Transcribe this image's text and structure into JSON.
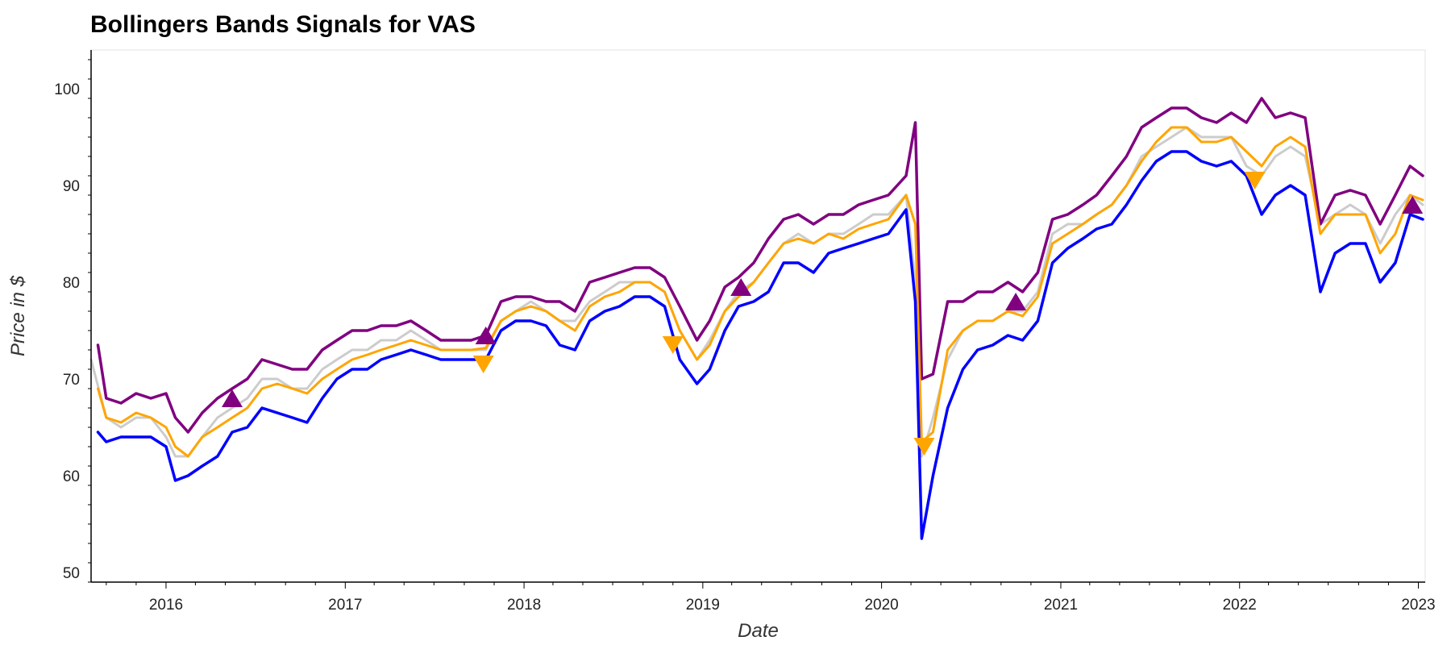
{
  "chart_data": {
    "type": "line",
    "title": "Bollingers Bands Signals for VAS",
    "xlabel": "Date",
    "ylabel": "Price in $",
    "xlim": [
      "2015-08-01",
      "2023-01-15"
    ],
    "ylim": [
      49,
      104
    ],
    "y_ticks": [
      50,
      60,
      70,
      80,
      90,
      100
    ],
    "x_ticks": [
      "2016",
      "2017",
      "2018",
      "2019",
      "2020",
      "2021",
      "2022",
      "2023"
    ],
    "grid": false,
    "colors": {
      "close": "#cccccc",
      "upper": "#800080",
      "middle": "#ffa500",
      "lower": "#0000ff",
      "buy": "#800080",
      "sell": "#ffa500"
    },
    "series": [
      {
        "key": "close",
        "x": [
          "2015-08-01",
          "2015-09-01",
          "2015-10-01",
          "2015-11-01",
          "2015-12-01",
          "2016-01-01",
          "2016-01-20",
          "2016-02-15",
          "2016-03-15",
          "2016-04-15",
          "2016-05-15",
          "2016-06-15",
          "2016-07-15",
          "2016-08-15",
          "2016-09-15",
          "2016-10-15",
          "2016-11-15",
          "2016-12-15",
          "2017-01-15",
          "2017-02-15",
          "2017-03-15",
          "2017-04-15",
          "2017-05-15",
          "2017-06-15",
          "2017-07-15",
          "2017-08-15",
          "2017-09-15",
          "2017-10-15",
          "2017-11-15",
          "2017-12-15",
          "2018-01-15",
          "2018-02-15",
          "2018-03-15",
          "2018-04-15",
          "2018-05-15",
          "2018-06-15",
          "2018-07-15",
          "2018-08-15",
          "2018-09-15",
          "2018-10-15",
          "2018-11-15",
          "2018-12-20",
          "2019-01-15",
          "2019-02-15",
          "2019-03-15",
          "2019-04-15",
          "2019-05-15",
          "2019-06-15",
          "2019-07-15",
          "2019-08-15",
          "2019-09-15",
          "2019-10-15",
          "2019-11-15",
          "2019-12-15",
          "2020-01-15",
          "2020-02-20",
          "2020-03-10",
          "2020-03-23",
          "2020-04-15",
          "2020-05-15",
          "2020-06-15",
          "2020-07-15",
          "2020-08-15",
          "2020-09-15",
          "2020-10-15",
          "2020-11-15",
          "2020-12-15",
          "2021-01-15",
          "2021-02-15",
          "2021-03-15",
          "2021-04-15",
          "2021-05-15",
          "2021-06-15",
          "2021-07-15",
          "2021-08-15",
          "2021-09-15",
          "2021-10-15",
          "2021-11-15",
          "2021-12-15",
          "2022-01-15",
          "2022-02-15",
          "2022-03-15",
          "2022-04-15",
          "2022-05-15",
          "2022-06-15",
          "2022-07-15",
          "2022-08-15",
          "2022-09-15",
          "2022-10-15",
          "2022-11-15",
          "2022-12-15",
          "2023-01-10"
        ],
        "values": [
          72,
          66,
          65,
          66,
          66,
          64,
          62,
          62,
          64,
          66,
          67,
          68,
          70,
          70,
          69,
          69,
          71,
          72,
          73,
          73,
          74,
          74,
          75,
          74,
          73,
          73,
          73,
          73,
          76,
          77,
          78,
          77,
          76,
          76,
          78,
          79,
          80,
          80,
          80,
          79,
          75,
          72,
          74,
          77,
          79,
          80,
          82,
          84,
          85,
          84,
          85,
          85,
          86,
          87,
          87,
          89,
          80,
          62,
          66,
          72,
          75,
          76,
          76,
          77,
          77,
          79,
          85,
          86,
          86,
          87,
          88,
          90,
          93,
          94,
          95,
          96,
          95,
          95,
          95,
          92,
          91,
          93,
          94,
          93,
          86,
          87,
          88,
          87,
          84,
          87,
          89,
          88
        ]
      },
      {
        "key": "upper",
        "x": [
          "2015-08-15",
          "2015-09-01",
          "2015-10-01",
          "2015-11-01",
          "2015-12-01",
          "2016-01-01",
          "2016-01-20",
          "2016-02-15",
          "2016-03-15",
          "2016-04-15",
          "2016-05-15",
          "2016-06-15",
          "2016-07-15",
          "2016-08-15",
          "2016-09-15",
          "2016-10-15",
          "2016-11-15",
          "2016-12-15",
          "2017-01-15",
          "2017-02-15",
          "2017-03-15",
          "2017-04-15",
          "2017-05-15",
          "2017-06-15",
          "2017-07-15",
          "2017-08-15",
          "2017-09-15",
          "2017-10-15",
          "2017-11-15",
          "2017-12-15",
          "2018-01-15",
          "2018-02-15",
          "2018-03-15",
          "2018-04-15",
          "2018-05-15",
          "2018-06-15",
          "2018-07-15",
          "2018-08-15",
          "2018-09-15",
          "2018-10-15",
          "2018-11-15",
          "2018-12-20",
          "2019-01-15",
          "2019-02-15",
          "2019-03-15",
          "2019-04-15",
          "2019-05-15",
          "2019-06-15",
          "2019-07-15",
          "2019-08-15",
          "2019-09-15",
          "2019-10-15",
          "2019-11-15",
          "2019-12-15",
          "2020-01-15",
          "2020-02-20",
          "2020-03-10",
          "2020-03-23",
          "2020-04-15",
          "2020-05-15",
          "2020-06-15",
          "2020-07-15",
          "2020-08-15",
          "2020-09-15",
          "2020-10-15",
          "2020-11-15",
          "2020-12-15",
          "2021-01-15",
          "2021-02-15",
          "2021-03-15",
          "2021-04-15",
          "2021-05-15",
          "2021-06-15",
          "2021-07-15",
          "2021-08-15",
          "2021-09-15",
          "2021-10-15",
          "2021-11-15",
          "2021-12-15",
          "2022-01-15",
          "2022-02-15",
          "2022-03-15",
          "2022-04-15",
          "2022-05-15",
          "2022-06-15",
          "2022-07-15",
          "2022-08-15",
          "2022-09-15",
          "2022-10-15",
          "2022-11-15",
          "2022-12-15",
          "2023-01-10"
        ],
        "values": [
          73.5,
          68,
          67.5,
          68.5,
          68,
          68.5,
          66,
          64.5,
          66.5,
          68,
          69,
          70,
          72,
          71.5,
          71,
          71,
          73,
          74,
          75,
          75,
          75.5,
          75.5,
          76,
          75,
          74,
          74,
          74,
          74.5,
          78,
          78.5,
          78.5,
          78,
          78,
          77,
          80,
          80.5,
          81,
          81.5,
          81.5,
          80.5,
          77.5,
          74,
          76,
          79.5,
          80.5,
          82,
          84.5,
          86.5,
          87,
          86,
          87,
          87,
          88,
          88.5,
          89,
          91,
          96.5,
          70,
          70.5,
          78,
          78,
          79,
          79,
          80,
          79,
          81,
          86.5,
          87,
          88,
          89,
          91,
          93,
          96,
          97,
          98,
          98,
          97,
          96.5,
          97.5,
          96.5,
          99,
          97,
          97.5,
          97,
          86,
          89,
          89.5,
          89,
          86,
          89,
          92,
          91
        ]
      },
      {
        "key": "middle",
        "x": [
          "2015-08-15",
          "2015-09-01",
          "2015-10-01",
          "2015-11-01",
          "2015-12-01",
          "2016-01-01",
          "2016-01-20",
          "2016-02-15",
          "2016-03-15",
          "2016-04-15",
          "2016-05-15",
          "2016-06-15",
          "2016-07-15",
          "2016-08-15",
          "2016-09-15",
          "2016-10-15",
          "2016-11-15",
          "2016-12-15",
          "2017-01-15",
          "2017-02-15",
          "2017-03-15",
          "2017-04-15",
          "2017-05-15",
          "2017-06-15",
          "2017-07-15",
          "2017-08-15",
          "2017-09-15",
          "2017-10-15",
          "2017-11-15",
          "2017-12-15",
          "2018-01-15",
          "2018-02-15",
          "2018-03-15",
          "2018-04-15",
          "2018-05-15",
          "2018-06-15",
          "2018-07-15",
          "2018-08-15",
          "2018-09-15",
          "2018-10-15",
          "2018-11-15",
          "2018-12-20",
          "2019-01-15",
          "2019-02-15",
          "2019-03-15",
          "2019-04-15",
          "2019-05-15",
          "2019-06-15",
          "2019-07-15",
          "2019-08-15",
          "2019-09-15",
          "2019-10-15",
          "2019-11-15",
          "2019-12-15",
          "2020-01-15",
          "2020-02-20",
          "2020-03-10",
          "2020-03-23",
          "2020-04-15",
          "2020-05-15",
          "2020-06-15",
          "2020-07-15",
          "2020-08-15",
          "2020-09-15",
          "2020-10-15",
          "2020-11-15",
          "2020-12-15",
          "2021-01-15",
          "2021-02-15",
          "2021-03-15",
          "2021-04-15",
          "2021-05-15",
          "2021-06-15",
          "2021-07-15",
          "2021-08-15",
          "2021-09-15",
          "2021-10-15",
          "2021-11-15",
          "2021-12-15",
          "2022-01-15",
          "2022-02-15",
          "2022-03-15",
          "2022-04-15",
          "2022-05-15",
          "2022-06-15",
          "2022-07-15",
          "2022-08-15",
          "2022-09-15",
          "2022-10-15",
          "2022-11-15",
          "2022-12-15",
          "2023-01-10"
        ],
        "values": [
          69,
          66,
          65.5,
          66.5,
          66,
          65,
          63,
          62,
          64,
          65,
          66,
          67,
          69,
          69.5,
          69,
          68.5,
          70,
          71,
          72,
          72.5,
          73,
          73.5,
          74,
          73.5,
          73,
          73,
          73,
          73.2,
          76,
          77,
          77.5,
          77,
          76,
          75,
          77.5,
          78.5,
          79,
          80,
          80,
          79,
          75,
          72,
          73.5,
          77,
          78.5,
          80,
          82,
          84,
          84.5,
          84,
          85,
          84.5,
          85.5,
          86,
          86.5,
          89,
          86,
          63.5,
          64.5,
          73,
          75,
          76,
          76,
          77,
          76.5,
          78.5,
          84,
          85,
          86,
          87,
          88,
          90,
          92.5,
          94.5,
          96,
          96,
          94.5,
          94.5,
          95,
          93.5,
          92,
          94,
          95,
          94,
          85,
          87,
          87,
          87,
          83,
          85,
          89,
          88.5
        ]
      },
      {
        "key": "lower",
        "x": [
          "2015-08-15",
          "2015-09-01",
          "2015-10-01",
          "2015-11-01",
          "2015-12-01",
          "2016-01-01",
          "2016-01-20",
          "2016-02-15",
          "2016-03-15",
          "2016-04-15",
          "2016-05-15",
          "2016-06-15",
          "2016-07-15",
          "2016-08-15",
          "2016-09-15",
          "2016-10-15",
          "2016-11-15",
          "2016-12-15",
          "2017-01-15",
          "2017-02-15",
          "2017-03-15",
          "2017-04-15",
          "2017-05-15",
          "2017-06-15",
          "2017-07-15",
          "2017-08-15",
          "2017-09-15",
          "2017-10-15",
          "2017-11-15",
          "2017-12-15",
          "2018-01-15",
          "2018-02-15",
          "2018-03-15",
          "2018-04-15",
          "2018-05-15",
          "2018-06-15",
          "2018-07-15",
          "2018-08-15",
          "2018-09-15",
          "2018-10-15",
          "2018-11-15",
          "2018-12-20",
          "2019-01-15",
          "2019-02-15",
          "2019-03-15",
          "2019-04-15",
          "2019-05-15",
          "2019-06-15",
          "2019-07-15",
          "2019-08-15",
          "2019-09-15",
          "2019-10-15",
          "2019-11-15",
          "2019-12-15",
          "2020-01-15",
          "2020-02-20",
          "2020-03-10",
          "2020-03-23",
          "2020-04-15",
          "2020-05-15",
          "2020-06-15",
          "2020-07-15",
          "2020-08-15",
          "2020-09-15",
          "2020-10-15",
          "2020-11-15",
          "2020-12-15",
          "2021-01-15",
          "2021-02-15",
          "2021-03-15",
          "2021-04-15",
          "2021-05-15",
          "2021-06-15",
          "2021-07-15",
          "2021-08-15",
          "2021-09-15",
          "2021-10-15",
          "2021-11-15",
          "2021-12-15",
          "2022-01-15",
          "2022-02-15",
          "2022-03-15",
          "2022-04-15",
          "2022-05-15",
          "2022-06-15",
          "2022-07-15",
          "2022-08-15",
          "2022-09-15",
          "2022-10-15",
          "2022-11-15",
          "2022-12-15",
          "2023-01-10"
        ],
        "values": [
          64.5,
          63.5,
          64,
          64,
          64,
          63,
          59.5,
          60,
          61,
          62,
          64.5,
          65,
          67,
          66.5,
          66,
          65.5,
          68,
          70,
          71,
          71,
          72,
          72.5,
          73,
          72.5,
          72,
          72,
          72,
          72,
          75,
          76,
          76,
          75.5,
          73.5,
          73,
          76,
          77,
          77.5,
          78.5,
          78.5,
          77.5,
          72,
          69.5,
          71,
          75,
          77.5,
          78,
          79,
          82,
          82,
          81,
          83,
          83.5,
          84,
          84.5,
          85,
          87.5,
          78,
          53.5,
          60,
          67,
          71,
          73,
          73.5,
          74.5,
          74,
          76,
          82,
          83.5,
          84.5,
          85.5,
          86,
          88,
          90.5,
          92.5,
          93.5,
          93.5,
          92.5,
          92,
          92.5,
          91,
          87,
          89,
          90,
          89,
          79,
          83,
          84,
          84,
          80,
          82,
          87,
          86.5
        ]
      }
    ],
    "buy_signals": [
      {
        "x": "2016-05-15",
        "y": 68
      },
      {
        "x": "2017-10-15",
        "y": 74.5
      },
      {
        "x": "2019-03-20",
        "y": 79.5
      },
      {
        "x": "2020-10-01",
        "y": 78
      },
      {
        "x": "2022-12-20",
        "y": 88
      }
    ],
    "sell_signals": [
      {
        "x": "2017-10-10",
        "y": 71.5
      },
      {
        "x": "2018-11-01",
        "y": 73.5
      },
      {
        "x": "2020-03-28",
        "y": 63
      },
      {
        "x": "2022-02-01",
        "y": 90.5
      }
    ]
  }
}
